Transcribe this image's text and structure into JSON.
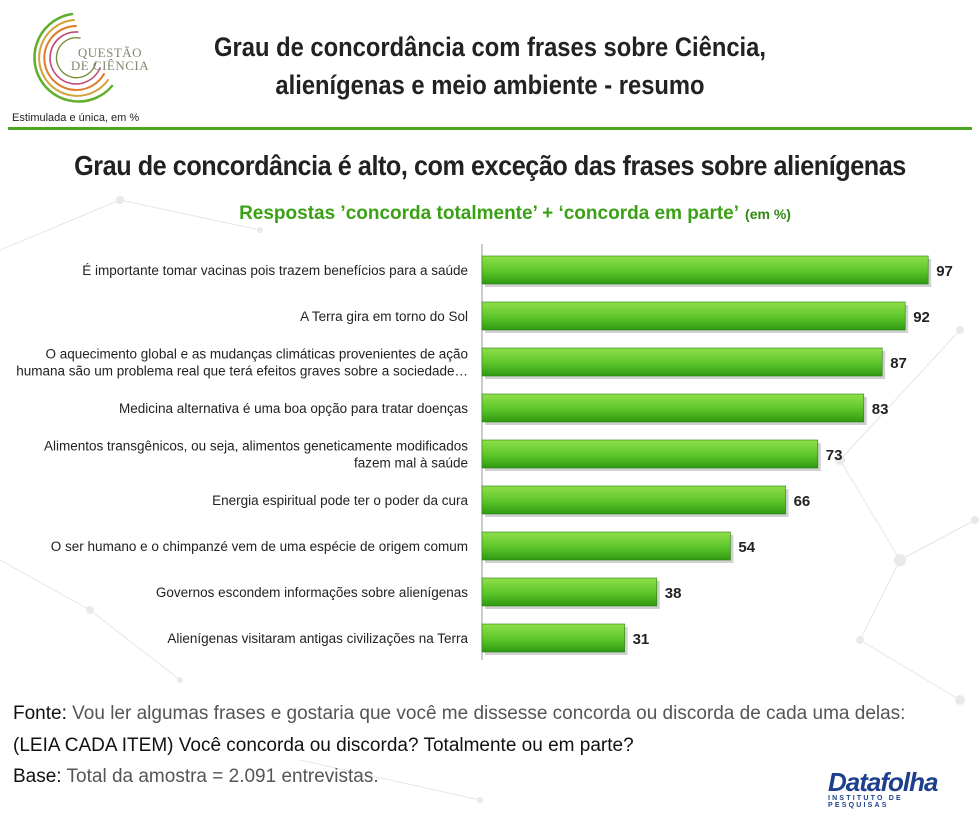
{
  "logo": {
    "line1": "QUESTÃO",
    "line2": "DE CIÊNCIA"
  },
  "header": {
    "title_line1": "Grau de concordância com frases sobre Ciência,",
    "title_line2": "alienígenas e meio ambiente - resumo",
    "note": "Estimulada e única, em %"
  },
  "headline": "Grau de concordância é alto, com exceção das frases sobre alienígenas",
  "chart_subtitle": "Respostas ’concorda totalmente’ + ‘concorda em parte’",
  "chart_subtitle_unit": "(em %)",
  "colors": {
    "accent": "#4aa61e",
    "bar_light": "#8fe04a",
    "bar_dark": "#2f9a12",
    "brand": "#1d3f8c"
  },
  "chart_data": {
    "type": "bar",
    "orientation": "horizontal",
    "categories": [
      [
        "É importante tomar vacinas pois trazem benefícios para a saúde"
      ],
      [
        "A Terra gira em torno do Sol"
      ],
      [
        "O aquecimento global e as mudanças climáticas provenientes de ação",
        "humana são um problema real que terá efeitos graves sobre a sociedade…"
      ],
      [
        "Medicina alternativa é uma boa opção para tratar doenças"
      ],
      [
        "Alimentos transgênicos, ou seja, alimentos geneticamente modificados",
        "fazem mal à saúde"
      ],
      [
        "Energia espiritual pode ter o poder da cura"
      ],
      [
        "O ser humano e o chimpanzé vem de uma espécie de origem comum"
      ],
      [
        "Governos escondem informações sobre alienígenas"
      ],
      [
        "Alienígenas visitaram antigas civilizações na Terra"
      ]
    ],
    "values": [
      97,
      92,
      87,
      83,
      73,
      66,
      54,
      38,
      31
    ],
    "xlim": [
      0,
      100
    ],
    "grid": false,
    "legend": "none"
  },
  "footer": {
    "fonte_label": "Fonte:",
    "fonte_text": " Vou ler algumas frases e gostaria que você me dissesse concorda ou discorda de cada uma delas:",
    "fonte_line2": "(LEIA CADA ITEM) Você concorda ou discorda? Totalmente ou em parte?",
    "base_label": "Base:",
    "base_text": " Total da amostra = 2.091 entrevistas."
  },
  "brand": {
    "name": "Datafolha",
    "sub": "INSTITUTO DE PESQUISAS"
  }
}
